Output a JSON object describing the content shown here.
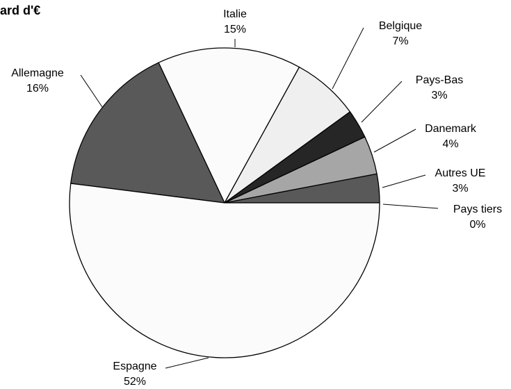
{
  "chart_data": {
    "type": "pie",
    "title": "ard d'€",
    "start_angle_deg": 0,
    "direction": "counterclockwise",
    "slices": [
      {
        "label": "Pays tiers",
        "value": 0,
        "value_label": "0%",
        "color": "#ffffff"
      },
      {
        "label": "Autres UE",
        "value": 3,
        "value_label": "3%",
        "color": "#595959"
      },
      {
        "label": "Danemark",
        "value": 4,
        "value_label": "4%",
        "color": "#a6a6a6"
      },
      {
        "label": "Pays-Bas",
        "value": 3,
        "value_label": "3%",
        "color": "#262626"
      },
      {
        "label": "Belgique",
        "value": 7,
        "value_label": "7%",
        "color": "#efefef"
      },
      {
        "label": "Italie",
        "value": 15,
        "value_label": "15%",
        "color": "#fbfbfb"
      },
      {
        "label": "Allemagne",
        "value": 16,
        "value_label": "16%",
        "color": "#595959"
      },
      {
        "label": "Espagne",
        "value": 52,
        "value_label": "52%",
        "color": "#fbfbfb"
      }
    ]
  }
}
